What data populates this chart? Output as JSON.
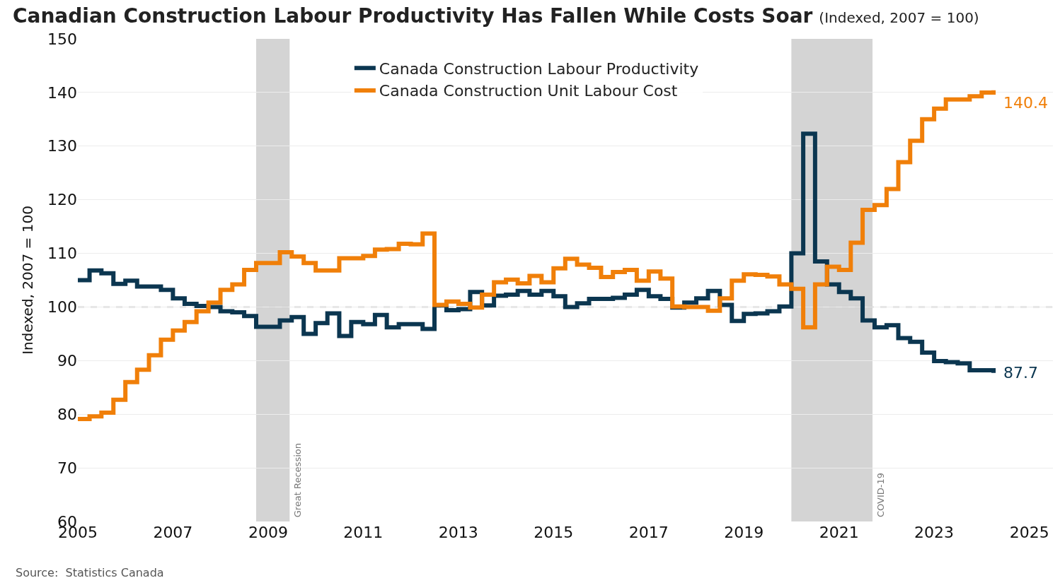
{
  "chart_data": {
    "type": "step",
    "title": "Canadian Construction Labour Productivity Has Fallen While Costs Soar",
    "subtitle": "(Indexed, 2007 = 100)",
    "ylabel": "Indexed, 2007 = 100",
    "x": [
      "2005-01",
      "2005-04",
      "2005-07",
      "2005-10",
      "2006-01",
      "2006-04",
      "2006-07",
      "2006-10",
      "2007-01",
      "2007-04",
      "2007-07",
      "2007-10",
      "2008-01",
      "2008-04",
      "2008-07",
      "2008-10",
      "2009-01",
      "2009-04",
      "2009-07",
      "2009-10",
      "2010-01",
      "2010-04",
      "2010-07",
      "2010-10",
      "2011-01",
      "2011-04",
      "2011-07",
      "2011-10",
      "2012-01",
      "2012-04",
      "2012-07",
      "2012-10",
      "2013-01",
      "2013-04",
      "2013-07",
      "2013-10",
      "2014-01",
      "2014-04",
      "2014-07",
      "2014-10",
      "2015-01",
      "2015-04",
      "2015-07",
      "2015-10",
      "2016-01",
      "2016-04",
      "2016-07",
      "2016-10",
      "2017-01",
      "2017-04",
      "2017-07",
      "2017-10",
      "2018-01",
      "2018-04",
      "2018-07",
      "2018-10",
      "2019-01",
      "2019-04",
      "2019-07",
      "2019-10",
      "2020-01",
      "2020-04",
      "2020-07",
      "2020-10",
      "2021-01",
      "2021-04",
      "2021-07",
      "2021-10",
      "2022-01",
      "2022-04",
      "2022-07",
      "2022-10",
      "2023-01",
      "2023-04",
      "2023-07",
      "2023-10",
      "2024-01",
      "2024-04"
    ],
    "series": [
      {
        "name": "Canada Construction Labour Productivity",
        "color": "#0b3650",
        "values": [
          105,
          106.8,
          106.3,
          104.3,
          104.9,
          103.8,
          103.8,
          103.2,
          101.6,
          100.6,
          100.2,
          100,
          99.2,
          99,
          98.3,
          96.3,
          96.3,
          97.5,
          98.1,
          95,
          97,
          98.8,
          94.6,
          97.2,
          96.8,
          98.5,
          96.2,
          96.8,
          96.8,
          95.9,
          100.3,
          99.4,
          99.6,
          102.8,
          100.3,
          102.1,
          102.3,
          103,
          102.3,
          103,
          102,
          100,
          100.7,
          101.5,
          101.5,
          101.7,
          102.3,
          103.2,
          102,
          101.5,
          99.9,
          100.8,
          101.6,
          103,
          100.4,
          97.4,
          98.7,
          98.8,
          99.2,
          100.1,
          110,
          132.3,
          108.5,
          104.2,
          102.8,
          101.6,
          97.5,
          96.2,
          96.6,
          94.2,
          93.5,
          91.5,
          89.9,
          89.7,
          89.5,
          88.2,
          88.2,
          87.7
        ]
      },
      {
        "name": "Canada Construction Unit Labour Cost",
        "color": "#f07f09",
        "values": [
          79.1,
          79.6,
          80.3,
          82.7,
          86,
          88.3,
          91,
          93.9,
          95.6,
          97.2,
          99.2,
          100.8,
          103.2,
          104.2,
          106.9,
          108.2,
          108.2,
          110.2,
          109.4,
          108.2,
          106.8,
          106.8,
          109.1,
          109.1,
          109.5,
          110.7,
          110.8,
          111.8,
          111.7,
          113.7,
          100.4,
          101,
          100.6,
          99.9,
          102.3,
          104.6,
          105.1,
          104.4,
          105.8,
          104.6,
          107.2,
          109,
          107.9,
          107.3,
          105.6,
          106.5,
          106.9,
          104.9,
          106.6,
          105.3,
          100.1,
          100,
          100,
          99.3,
          101.6,
          104.9,
          106.1,
          106,
          105.7,
          104.2,
          103.4,
          96.2,
          104.2,
          107.5,
          106.9,
          112,
          118.1,
          119,
          122,
          127,
          131,
          135,
          137,
          138.7,
          138.7,
          139.3,
          140,
          140.4
        ]
      }
    ],
    "xlim": [
      "2005-01-01",
      "2025-07-01"
    ],
    "xticks": [
      {
        "value": "2005-01-01",
        "label": "2005"
      },
      {
        "value": "2007-01-01",
        "label": "2007"
      },
      {
        "value": "2009-01-01",
        "label": "2009"
      },
      {
        "value": "2011-01-01",
        "label": "2011"
      },
      {
        "value": "2013-01-01",
        "label": "2013"
      },
      {
        "value": "2015-01-01",
        "label": "2015"
      },
      {
        "value": "2017-01-01",
        "label": "2017"
      },
      {
        "value": "2019-01-01",
        "label": "2019"
      },
      {
        "value": "2021-01-01",
        "label": "2021"
      },
      {
        "value": "2023-01-01",
        "label": "2023"
      },
      {
        "value": "2025-01-01",
        "label": "2025"
      }
    ],
    "ylim": [
      60,
      150
    ],
    "yticks": [
      60,
      70,
      80,
      90,
      100,
      110,
      120,
      130,
      140,
      150
    ],
    "grid": "y",
    "legend": "top",
    "ref_lines": [
      {
        "axis": "y",
        "value": 100,
        "color": "#c8c8c8",
        "line_style": "dashed"
      }
    ],
    "bands": [
      {
        "axis": "x",
        "from": "2008-10-01",
        "to": "2009-06-15",
        "label": "Great Recession",
        "color": "#d4d4d4"
      },
      {
        "axis": "x",
        "from": "2020-01-01",
        "to": "2021-09-15",
        "label": "COVID-19",
        "color": "#d4d4d4"
      }
    ],
    "annotations": [
      {
        "text": "140.4",
        "x": "2024-04",
        "y": 140.4
      },
      {
        "text": "87.7",
        "x": "2024-04",
        "y": 87.7
      },
      "Source:  Statistics Canada"
    ]
  }
}
